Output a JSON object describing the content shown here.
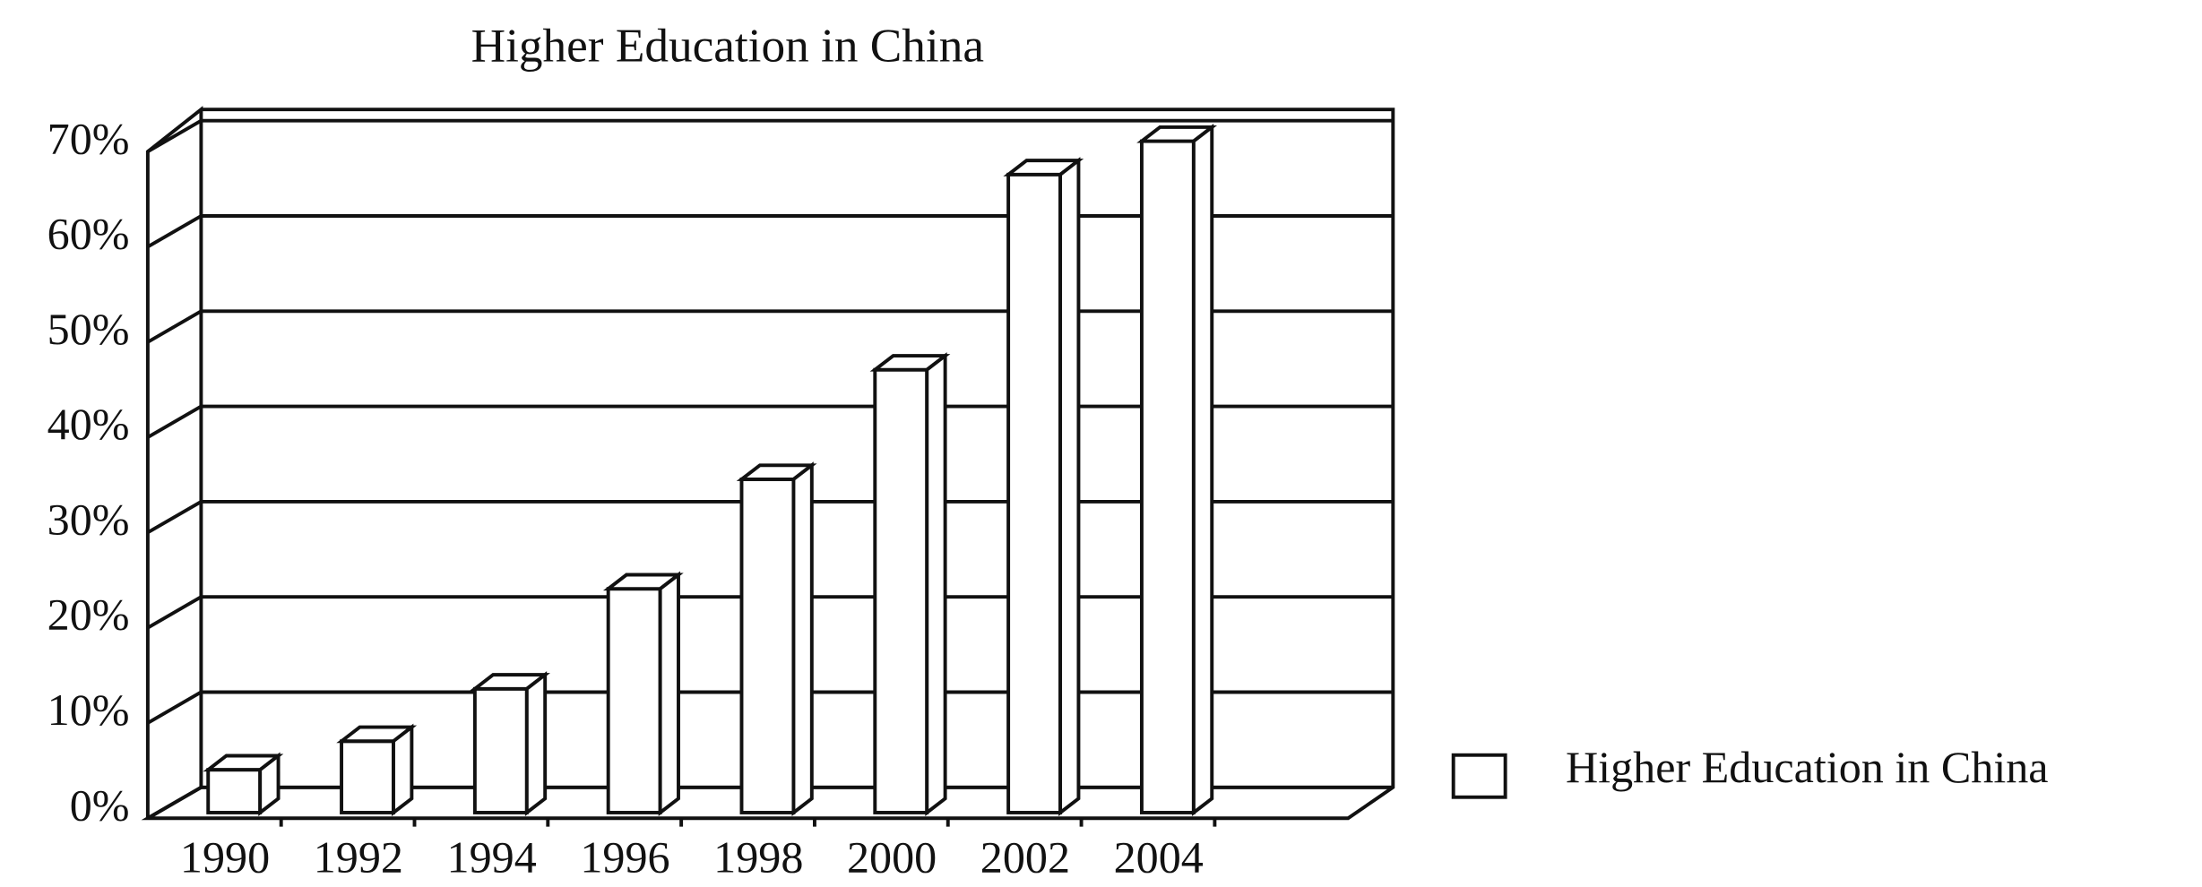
{
  "chart_data": {
    "type": "bar3d",
    "title": "Higher Education in China",
    "categories": [
      "1990",
      "1992",
      "1994",
      "1996",
      "1998",
      "2000",
      "2002",
      "2004"
    ],
    "series": [
      {
        "name": "Higher Education in China",
        "color": "#ffffff",
        "values": [
          4.5,
          7.5,
          13,
          23.5,
          35,
          46.5,
          67,
          70.5
        ]
      }
    ],
    "ylim": [
      0,
      70
    ],
    "yticks": [
      {
        "value": 0,
        "label": "0%"
      },
      {
        "value": 10,
        "label": "10%"
      },
      {
        "value": 20,
        "label": "20%"
      },
      {
        "value": 30,
        "label": "30%"
      },
      {
        "value": 40,
        "label": "40%"
      },
      {
        "value": 50,
        "label": "50%"
      },
      {
        "value": 60,
        "label": "60%"
      },
      {
        "value": 70,
        "label": "70%"
      }
    ],
    "grid": true,
    "legend": "right"
  }
}
